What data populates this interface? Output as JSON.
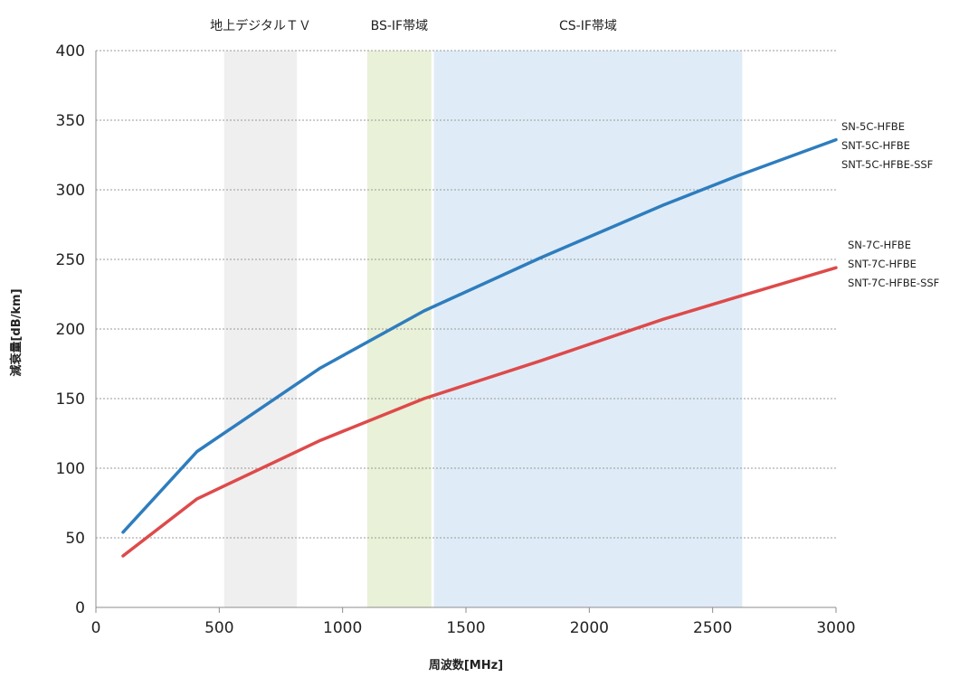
{
  "chart_data": {
    "type": "line",
    "xlabel": "周波数[MHz]",
    "ylabel": "減衰量[dB/km]",
    "xlim": [
      0,
      3000
    ],
    "ylim": [
      0,
      400
    ],
    "xticks": [
      0,
      500,
      1000,
      1500,
      2000,
      2500,
      3000
    ],
    "yticks": [
      0,
      50,
      100,
      150,
      200,
      250,
      300,
      350,
      400
    ],
    "grid": "horizontal",
    "bands": [
      {
        "label": "地上デジタルＴＶ",
        "from": 520,
        "to": 815,
        "color": "#efefef"
      },
      {
        "label": "BS-IF帯域",
        "from": 1100,
        "to": 1360,
        "color": "#e9f1d8"
      },
      {
        "label": "CS-IF帯域",
        "from": 1370,
        "to": 2620,
        "color": "#dfecf7"
      }
    ],
    "series": [
      {
        "labels": [
          "SN-5C-HFBE",
          "SNT-5C-HFBE",
          "SNT-5C-HFBE-SSF"
        ],
        "color": "#2e7dbe",
        "x": [
          110,
          410,
          910,
          1330,
          1800,
          2300,
          2600,
          3000
        ],
        "y": [
          54,
          112,
          172,
          213,
          251,
          289,
          310,
          336
        ]
      },
      {
        "labels": [
          "SN-7C-HFBE",
          "SNT-7C-HFBE",
          "SNT-7C-HFBE-SSF"
        ],
        "color": "#de4a4a",
        "x": [
          110,
          410,
          910,
          1330,
          1800,
          2300,
          2600,
          3000
        ],
        "y": [
          37,
          78,
          120,
          150,
          177,
          207,
          223,
          244
        ]
      }
    ]
  }
}
